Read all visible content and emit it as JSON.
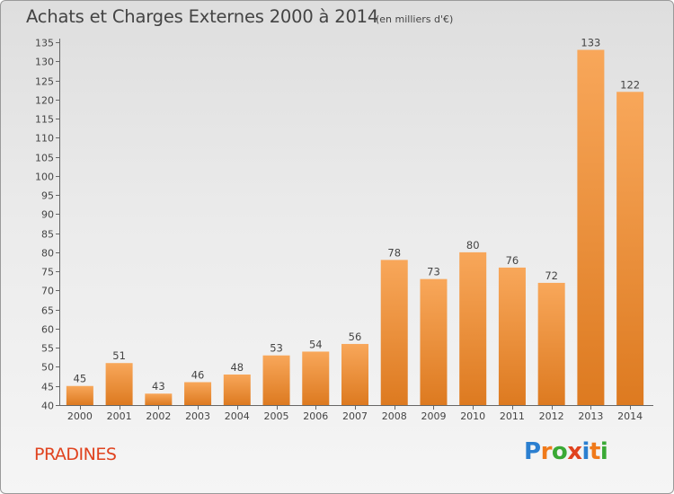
{
  "title": "Achats et Charges Externes 2000 à 2014",
  "subtitle": "(en milliers d'€)",
  "place": "PRADINES",
  "logo": {
    "text": "Proxiti",
    "colors": [
      "#2b7fd0",
      "#f07a1a",
      "#3aa935",
      "#e0431f",
      "#2b7fd0",
      "#f07a1a",
      "#3aa935"
    ]
  },
  "colors": {
    "bar_light": "#f8a75a",
    "bar_dark": "#dd7a20",
    "text": "#444444",
    "place": "#e0431f"
  },
  "chart_data": {
    "type": "bar",
    "title": "Achats et Charges Externes 2000 à 2014",
    "subtitle": "(en milliers d'€)",
    "categories": [
      "2000",
      "2001",
      "2002",
      "2003",
      "2004",
      "2005",
      "2006",
      "2007",
      "2008",
      "2009",
      "2010",
      "2011",
      "2012",
      "2013",
      "2014"
    ],
    "values": [
      45,
      51,
      43,
      46,
      48,
      53,
      54,
      56,
      78,
      73,
      80,
      76,
      72,
      133,
      122
    ],
    "ylim": [
      40,
      135
    ],
    "yticks": [
      40,
      45,
      50,
      55,
      60,
      65,
      70,
      75,
      80,
      85,
      90,
      95,
      100,
      105,
      110,
      115,
      120,
      125,
      130,
      135
    ],
    "grid": false,
    "data_labels": true
  }
}
